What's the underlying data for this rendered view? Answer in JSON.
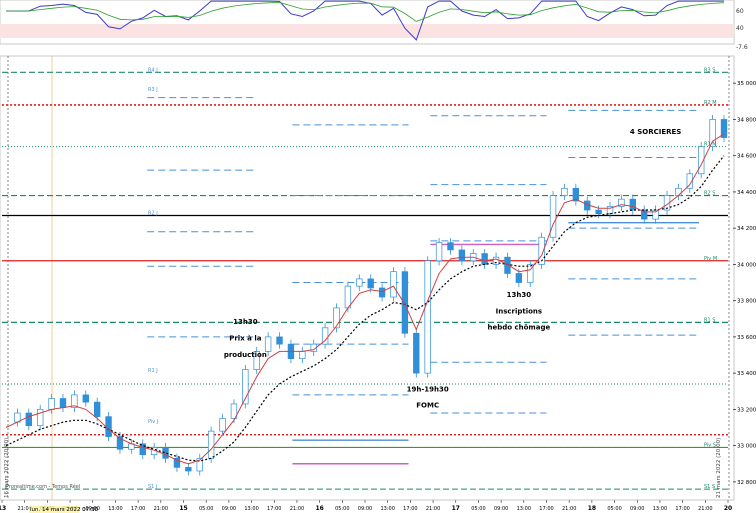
{
  "chart_data": {
    "type": "line",
    "title": "",
    "xlabel": "",
    "ylabel": "",
    "ylim": [
      32700,
      35150
    ],
    "y_ticks": [
      32800,
      33000,
      33200,
      33400,
      33600,
      33800,
      34000,
      34200,
      34400,
      34600,
      34800,
      35000
    ],
    "y_tick_labels": [
      "32 800",
      "33 000",
      "33 200",
      "33 400",
      "33 600",
      "33 800",
      "34 000",
      "34 200",
      "34 400",
      "34 600",
      "34 800",
      "35 000"
    ],
    "x_tick_labels": [
      "13",
      "21:00",
      "01:00",
      "05:00",
      "09:00",
      "13:00",
      "17:00",
      "21:00",
      "15",
      "05:00",
      "09:00",
      "13:00",
      "17:00",
      "21:00",
      "16",
      "05:00",
      "09:00",
      "13:00",
      "17:00",
      "21:00",
      "17",
      "05:00",
      "09:00",
      "13:00",
      "17:00",
      "21:00",
      "18",
      "05:00",
      "09:00",
      "13:00",
      "17:00",
      "21:00",
      "20"
    ],
    "date_stamp_bottom": "lun. 14 mars 2022 07:30",
    "vertical_watermark_left": "16 mars 2022 (20:00)",
    "vertical_watermark_right": "21 mars 2022 (20:00)",
    "source_label": "Prorealtime.com - Temps Réel",
    "oscillator_ticks": [
      "60",
      "40",
      "-7.6"
    ],
    "pivot_labels_left": [
      "R4 J",
      "R3 J",
      "R2 J",
      "R1 J",
      "Piv J",
      "S1 J"
    ],
    "pivot_labels_right": [
      "R3 S",
      "R2 M",
      "R1 M",
      "R2 S",
      "Piv M",
      "R1 S",
      "Piv S",
      "S1 S"
    ],
    "series": [
      {
        "name": "",
        "values": [
          33130,
          33180,
          33110,
          33200,
          33260,
          33210,
          33280,
          33240,
          33160,
          33050,
          32980,
          33010,
          32950,
          32990,
          32930,
          32880,
          32860,
          32930,
          33080,
          33150,
          33230,
          33420,
          33520,
          33600,
          33560,
          33480,
          33520,
          33560,
          33650,
          33760,
          33880,
          33920,
          33870,
          33820,
          33960,
          33620,
          33400,
          34020,
          34120,
          34080,
          34020,
          34060,
          34000,
          34040,
          33950,
          33900,
          34000,
          34150,
          34380,
          34420,
          34350,
          34300,
          34280,
          34320,
          34360,
          34300,
          34250,
          34300,
          34380,
          34420,
          34500,
          34650,
          34800,
          34700
        ]
      },
      {
        "name": "",
        "values": [
          33100,
          33130,
          33160,
          33180,
          33200,
          33210,
          33220,
          33200,
          33150,
          33090,
          33040,
          33010,
          32990,
          32975,
          32950,
          32920,
          32900,
          32920,
          32980,
          33060,
          33140,
          33260,
          33380,
          33480,
          33520,
          33520,
          33520,
          33530,
          33580,
          33660,
          33760,
          33840,
          33860,
          33850,
          33880,
          33780,
          33640,
          33800,
          33950,
          34030,
          34040,
          34040,
          34020,
          34030,
          34000,
          33960,
          33970,
          34050,
          34220,
          34340,
          34360,
          34330,
          34310,
          34310,
          34330,
          34320,
          34290,
          34290,
          34330,
          34380,
          34440,
          34550,
          34680,
          34720
        ]
      },
      {
        "name": "",
        "values": [
          33000,
          33030,
          33060,
          33090,
          33110,
          33130,
          33140,
          33140,
          33120,
          33090,
          33060,
          33030,
          33000,
          32980,
          32960,
          32940,
          32920,
          32915,
          32930,
          32970,
          33020,
          33100,
          33190,
          33280,
          33340,
          33380,
          33410,
          33440,
          33480,
          33530,
          33600,
          33670,
          33720,
          33750,
          33790,
          33780,
          33750,
          33790,
          33860,
          33920,
          33960,
          33990,
          34000,
          34010,
          34000,
          33990,
          33990,
          34020,
          34100,
          34180,
          34230,
          34260,
          34270,
          34280,
          34290,
          34300,
          34300,
          34300,
          34310,
          34330,
          34370,
          34430,
          34520,
          34600
        ]
      }
    ]
  },
  "annotations": [
    {
      "text": "4 SORCIERES",
      "x_index": 57,
      "y": 34720
    },
    {
      "text": "13h30",
      "x_index": 21,
      "y": 33670
    },
    {
      "text": "Prix à la",
      "x_index": 21,
      "y": 33580
    },
    {
      "text": "production",
      "x_index": 21,
      "y": 33490
    },
    {
      "text": "13h30",
      "x_index": 45,
      "y": 33820
    },
    {
      "text": "Inscriptions",
      "x_index": 45,
      "y": 33730
    },
    {
      "text": "hebdo chômage",
      "x_index": 45,
      "y": 33640
    },
    {
      "text": "19h-19h30",
      "x_index": 37,
      "y": 33300
    },
    {
      "text": "FOMC",
      "x_index": 37,
      "y": 33210
    }
  ],
  "colors": {
    "candles": "#2f8fd8",
    "fast_ma": "#d04040",
    "slow_ma": "#000000",
    "pivot_blue": "#4a90d9",
    "pivot_teal": "#1a8a6a",
    "pivot_red": "#e02020",
    "pivot_green": "#2ca02c",
    "pivot_magenta": "#d060c0"
  }
}
